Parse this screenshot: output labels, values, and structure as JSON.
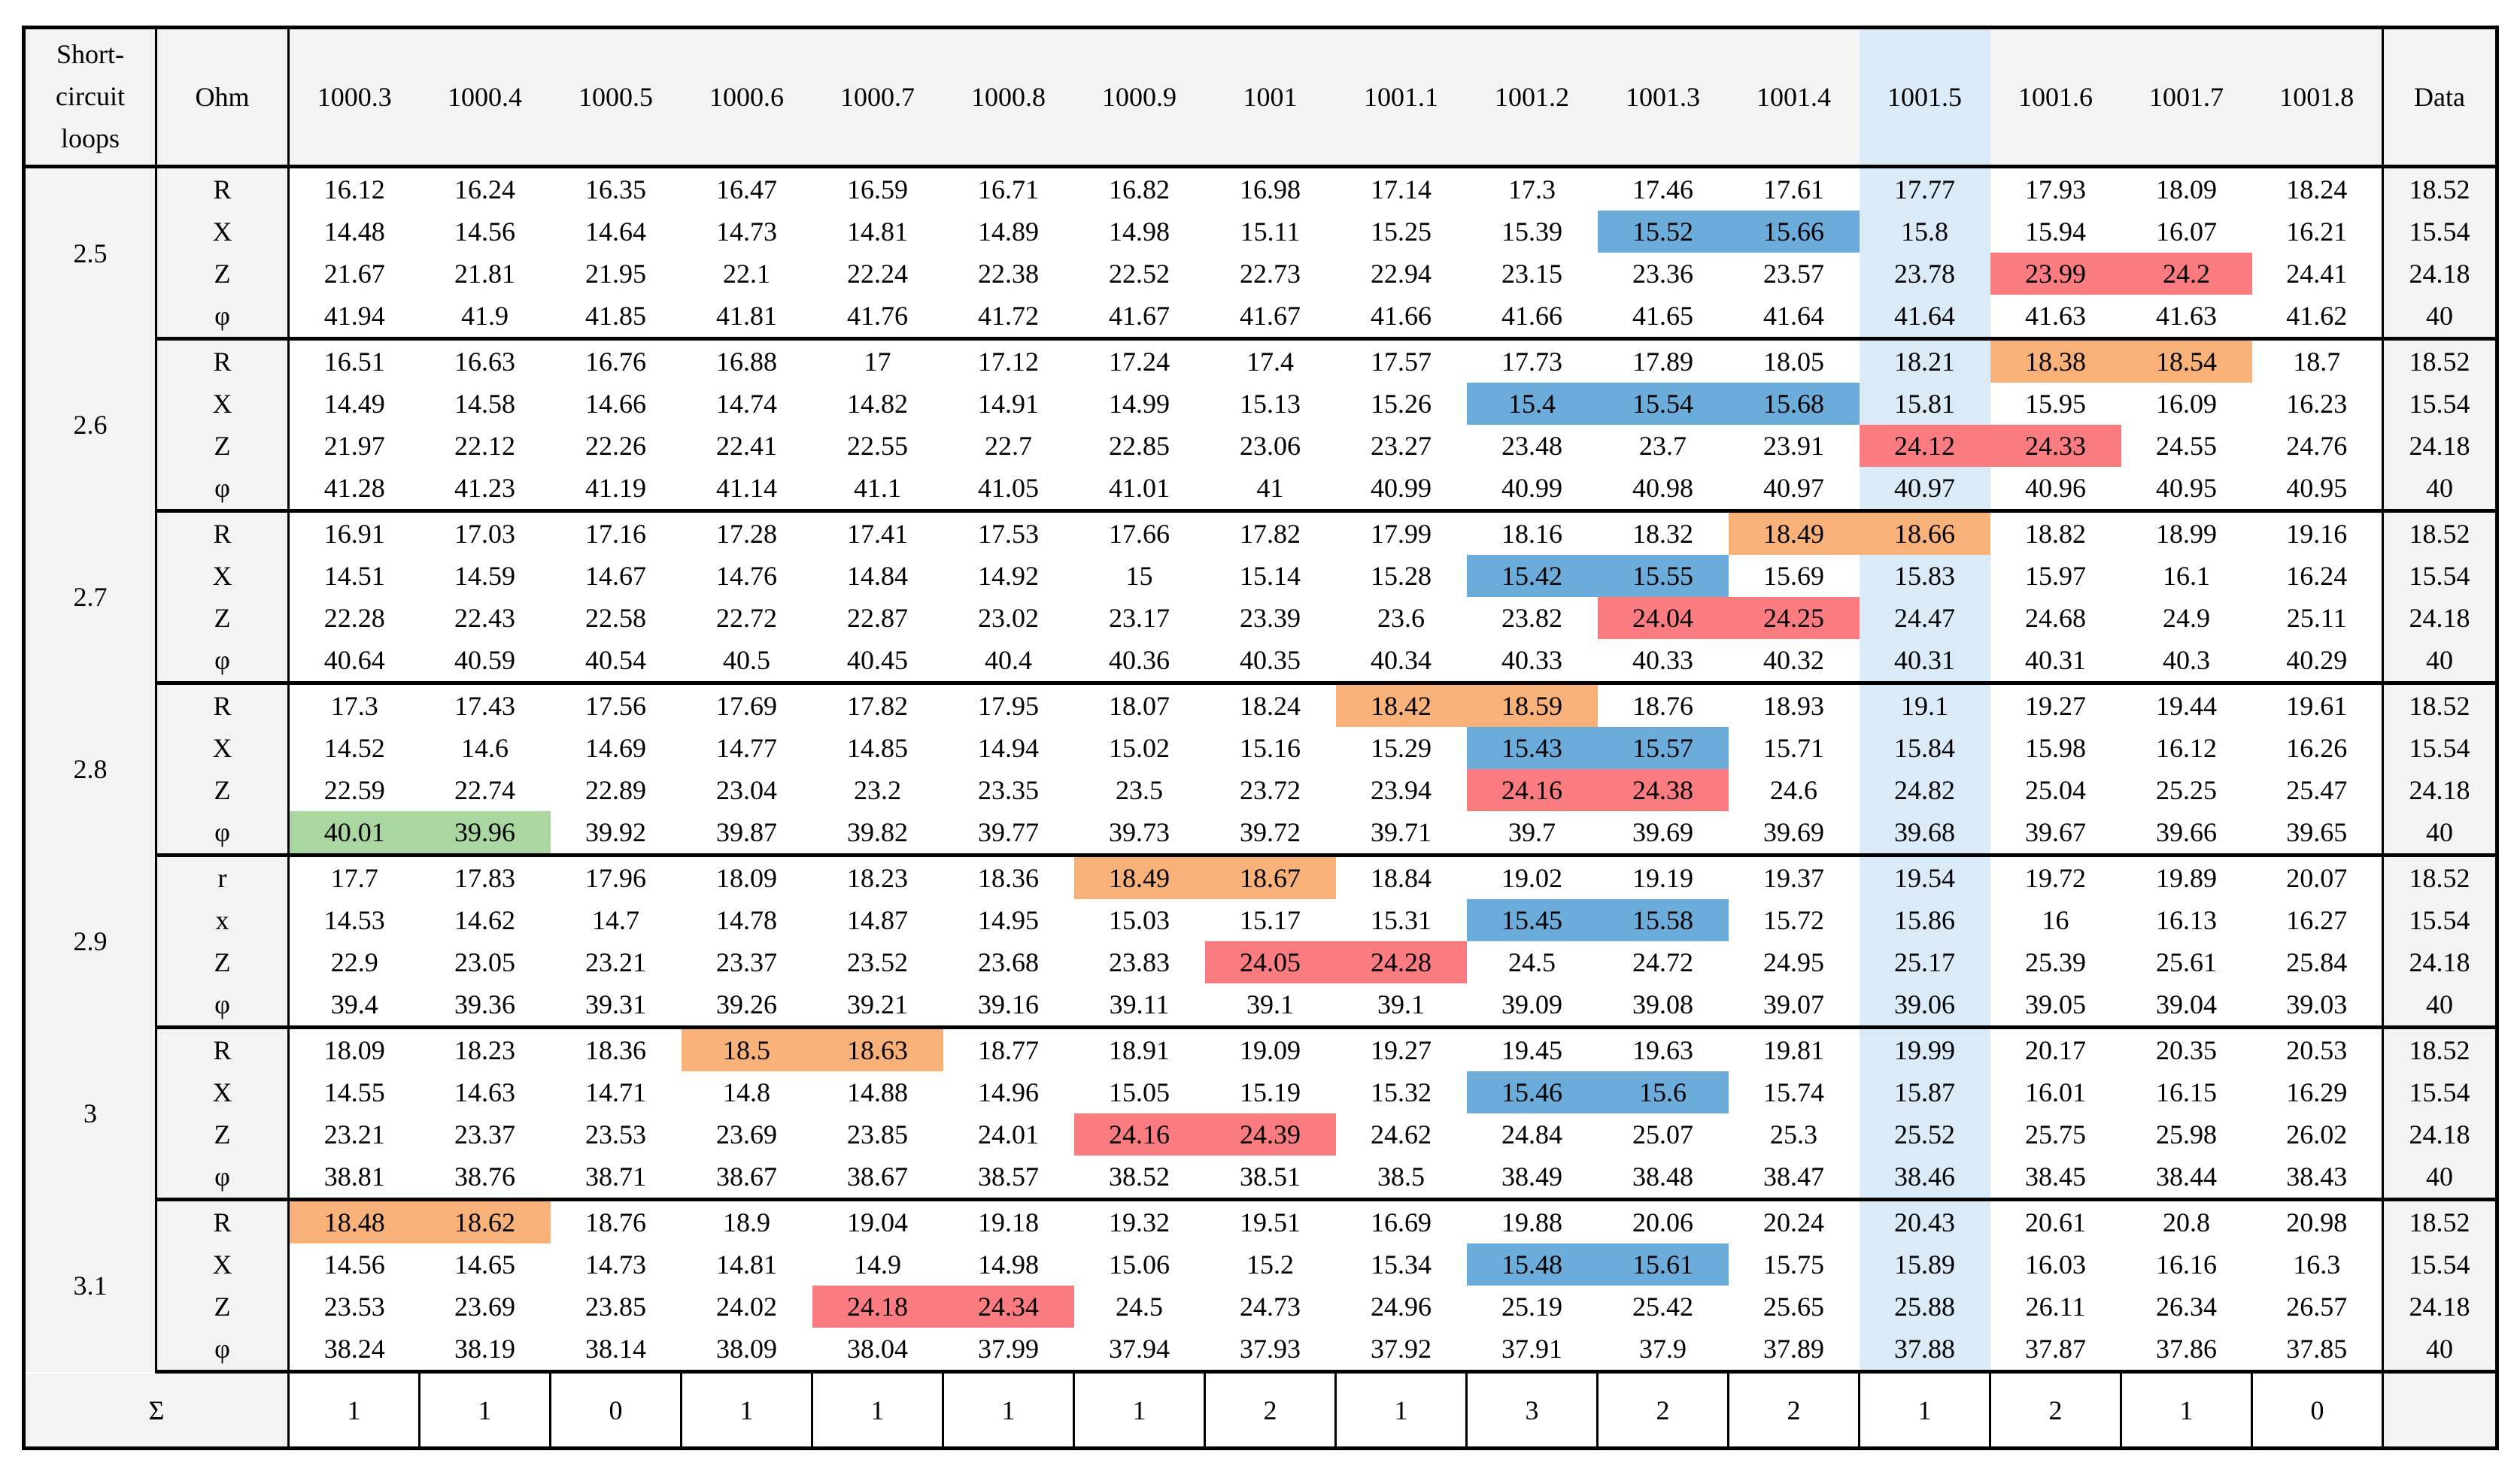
{
  "colors": {
    "header_bg": "#f3f3f1",
    "column_band": "#daeaf6",
    "highlight_blue": "#6cacda",
    "highlight_red": "#fa7b80",
    "highlight_orange": "#f8b178",
    "highlight_green": "#aad7a0",
    "border": "#000000",
    "body_bg": "#ffffff"
  },
  "chart_data": {
    "type": "table",
    "corner_header_text": "Short-\ncircuit\nloops",
    "corner_header": "Short-circuit loops",
    "unit_header": "Ohm",
    "data_header": "Data",
    "highlight_column": "1001.5",
    "column_headers": [
      "1000.3",
      "1000.4",
      "1000.5",
      "1000.6",
      "1000.7",
      "1000.8",
      "1000.9",
      "1001",
      "1001.1",
      "1001.2",
      "1001.3",
      "1001.4",
      "1001.5",
      "1001.6",
      "1001.7",
      "1001.8"
    ],
    "groups": [
      {
        "loop": "2.5",
        "rows": [
          {
            "label": "R",
            "values": [
              "16.12",
              "16.24",
              "16.35",
              "16.47",
              "16.59",
              "16.71",
              "16.82",
              "16.98",
              "17.14",
              "17.3",
              "17.46",
              "17.61",
              "17.77",
              "17.93",
              "18.09",
              "18.24"
            ],
            "data": "18.52",
            "highlights": {}
          },
          {
            "label": "X",
            "values": [
              "14.48",
              "14.56",
              "14.64",
              "14.73",
              "14.81",
              "14.89",
              "14.98",
              "15.11",
              "15.25",
              "15.39",
              "15.52",
              "15.66",
              "15.8",
              "15.94",
              "16.07",
              "16.21"
            ],
            "data": "15.54",
            "highlights": {
              "10": "blue",
              "11": "blue"
            }
          },
          {
            "label": "Z",
            "values": [
              "21.67",
              "21.81",
              "21.95",
              "22.1",
              "22.24",
              "22.38",
              "22.52",
              "22.73",
              "22.94",
              "23.15",
              "23.36",
              "23.57",
              "23.78",
              "23.99",
              "24.2",
              "24.41"
            ],
            "data": "24.18",
            "highlights": {
              "13": "red",
              "14": "red"
            }
          },
          {
            "label": "φ",
            "values": [
              "41.94",
              "41.9",
              "41.85",
              "41.81",
              "41.76",
              "41.72",
              "41.67",
              "41.67",
              "41.66",
              "41.66",
              "41.65",
              "41.64",
              "41.64",
              "41.63",
              "41.63",
              "41.62"
            ],
            "data": "40",
            "highlights": {}
          }
        ]
      },
      {
        "loop": "2.6",
        "rows": [
          {
            "label": "R",
            "values": [
              "16.51",
              "16.63",
              "16.76",
              "16.88",
              "17",
              "17.12",
              "17.24",
              "17.4",
              "17.57",
              "17.73",
              "17.89",
              "18.05",
              "18.21",
              "18.38",
              "18.54",
              "18.7"
            ],
            "data": "18.52",
            "highlights": {
              "13": "orange",
              "14": "orange"
            }
          },
          {
            "label": "X",
            "values": [
              "14.49",
              "14.58",
              "14.66",
              "14.74",
              "14.82",
              "14.91",
              "14.99",
              "15.13",
              "15.26",
              "15.4",
              "15.54",
              "15.68",
              "15.81",
              "15.95",
              "16.09",
              "16.23"
            ],
            "data": "15.54",
            "highlights": {
              "9": "blue",
              "10": "blue",
              "11": "blue"
            }
          },
          {
            "label": "Z",
            "values": [
              "21.97",
              "22.12",
              "22.26",
              "22.41",
              "22.55",
              "22.7",
              "22.85",
              "23.06",
              "23.27",
              "23.48",
              "23.7",
              "23.91",
              "24.12",
              "24.33",
              "24.55",
              "24.76"
            ],
            "data": "24.18",
            "highlights": {
              "12": "red",
              "13": "red"
            }
          },
          {
            "label": "φ",
            "values": [
              "41.28",
              "41.23",
              "41.19",
              "41.14",
              "41.1",
              "41.05",
              "41.01",
              "41",
              "40.99",
              "40.99",
              "40.98",
              "40.97",
              "40.97",
              "40.96",
              "40.95",
              "40.95"
            ],
            "data": "40",
            "highlights": {}
          }
        ]
      },
      {
        "loop": "2.7",
        "rows": [
          {
            "label": "R",
            "values": [
              "16.91",
              "17.03",
              "17.16",
              "17.28",
              "17.41",
              "17.53",
              "17.66",
              "17.82",
              "17.99",
              "18.16",
              "18.32",
              "18.49",
              "18.66",
              "18.82",
              "18.99",
              "19.16"
            ],
            "data": "18.52",
            "highlights": {
              "11": "orange",
              "12": "orange"
            }
          },
          {
            "label": "X",
            "values": [
              "14.51",
              "14.59",
              "14.67",
              "14.76",
              "14.84",
              "14.92",
              "15",
              "15.14",
              "15.28",
              "15.42",
              "15.55",
              "15.69",
              "15.83",
              "15.97",
              "16.1",
              "16.24"
            ],
            "data": "15.54",
            "highlights": {
              "9": "blue",
              "10": "blue"
            }
          },
          {
            "label": "Z",
            "values": [
              "22.28",
              "22.43",
              "22.58",
              "22.72",
              "22.87",
              "23.02",
              "23.17",
              "23.39",
              "23.6",
              "23.82",
              "24.04",
              "24.25",
              "24.47",
              "24.68",
              "24.9",
              "25.11"
            ],
            "data": "24.18",
            "highlights": {
              "10": "red",
              "11": "red"
            }
          },
          {
            "label": "φ",
            "values": [
              "40.64",
              "40.59",
              "40.54",
              "40.5",
              "40.45",
              "40.4",
              "40.36",
              "40.35",
              "40.34",
              "40.33",
              "40.33",
              "40.32",
              "40.31",
              "40.31",
              "40.3",
              "40.29"
            ],
            "data": "40",
            "highlights": {}
          }
        ]
      },
      {
        "loop": "2.8",
        "rows": [
          {
            "label": "R",
            "values": [
              "17.3",
              "17.43",
              "17.56",
              "17.69",
              "17.82",
              "17.95",
              "18.07",
              "18.24",
              "18.42",
              "18.59",
              "18.76",
              "18.93",
              "19.1",
              "19.27",
              "19.44",
              "19.61"
            ],
            "data": "18.52",
            "highlights": {
              "8": "orange",
              "9": "orange"
            }
          },
          {
            "label": "X",
            "values": [
              "14.52",
              "14.6",
              "14.69",
              "14.77",
              "14.85",
              "14.94",
              "15.02",
              "15.16",
              "15.29",
              "15.43",
              "15.57",
              "15.71",
              "15.84",
              "15.98",
              "16.12",
              "16.26"
            ],
            "data": "15.54",
            "highlights": {
              "9": "blue",
              "10": "blue"
            }
          },
          {
            "label": "Z",
            "values": [
              "22.59",
              "22.74",
              "22.89",
              "23.04",
              "23.2",
              "23.35",
              "23.5",
              "23.72",
              "23.94",
              "24.16",
              "24.38",
              "24.6",
              "24.82",
              "25.04",
              "25.25",
              "25.47"
            ],
            "data": "24.18",
            "highlights": {
              "9": "red",
              "10": "red"
            }
          },
          {
            "label": "φ",
            "values": [
              "40.01",
              "39.96",
              "39.92",
              "39.87",
              "39.82",
              "39.77",
              "39.73",
              "39.72",
              "39.71",
              "39.7",
              "39.69",
              "39.69",
              "39.68",
              "39.67",
              "39.66",
              "39.65"
            ],
            "data": "40",
            "highlights": {
              "0": "green",
              "1": "green"
            }
          }
        ]
      },
      {
        "loop": "2.9",
        "rows": [
          {
            "label": "r",
            "values": [
              "17.7",
              "17.83",
              "17.96",
              "18.09",
              "18.23",
              "18.36",
              "18.49",
              "18.67",
              "18.84",
              "19.02",
              "19.19",
              "19.37",
              "19.54",
              "19.72",
              "19.89",
              "20.07"
            ],
            "data": "18.52",
            "highlights": {
              "6": "orange",
              "7": "orange"
            }
          },
          {
            "label": "x",
            "values": [
              "14.53",
              "14.62",
              "14.7",
              "14.78",
              "14.87",
              "14.95",
              "15.03",
              "15.17",
              "15.31",
              "15.45",
              "15.58",
              "15.72",
              "15.86",
              "16",
              "16.13",
              "16.27"
            ],
            "data": "15.54",
            "highlights": {
              "9": "blue",
              "10": "blue"
            }
          },
          {
            "label": "Z",
            "values": [
              "22.9",
              "23.05",
              "23.21",
              "23.37",
              "23.52",
              "23.68",
              "23.83",
              "24.05",
              "24.28",
              "24.5",
              "24.72",
              "24.95",
              "25.17",
              "25.39",
              "25.61",
              "25.84"
            ],
            "data": "24.18",
            "highlights": {
              "7": "red",
              "8": "red"
            }
          },
          {
            "label": "φ",
            "values": [
              "39.4",
              "39.36",
              "39.31",
              "39.26",
              "39.21",
              "39.16",
              "39.11",
              "39.1",
              "39.1",
              "39.09",
              "39.08",
              "39.07",
              "39.06",
              "39.05",
              "39.04",
              "39.03"
            ],
            "data": "40",
            "highlights": {}
          }
        ]
      },
      {
        "loop": "3",
        "rows": [
          {
            "label": "R",
            "values": [
              "18.09",
              "18.23",
              "18.36",
              "18.5",
              "18.63",
              "18.77",
              "18.91",
              "19.09",
              "19.27",
              "19.45",
              "19.63",
              "19.81",
              "19.99",
              "20.17",
              "20.35",
              "20.53"
            ],
            "data": "18.52",
            "highlights": {
              "3": "orange",
              "4": "orange"
            }
          },
          {
            "label": "X",
            "values": [
              "14.55",
              "14.63",
              "14.71",
              "14.8",
              "14.88",
              "14.96",
              "15.05",
              "15.19",
              "15.32",
              "15.46",
              "15.6",
              "15.74",
              "15.87",
              "16.01",
              "16.15",
              "16.29"
            ],
            "data": "15.54",
            "highlights": {
              "9": "blue",
              "10": "blue"
            }
          },
          {
            "label": "Z",
            "values": [
              "23.21",
              "23.37",
              "23.53",
              "23.69",
              "23.85",
              "24.01",
              "24.16",
              "24.39",
              "24.62",
              "24.84",
              "25.07",
              "25.3",
              "25.52",
              "25.75",
              "25.98",
              "26.02"
            ],
            "data": "24.18",
            "highlights": {
              "6": "red",
              "7": "red"
            }
          },
          {
            "label": "φ",
            "values": [
              "38.81",
              "38.76",
              "38.71",
              "38.67",
              "38.67",
              "38.57",
              "38.52",
              "38.51",
              "38.5",
              "38.49",
              "38.48",
              "38.47",
              "38.46",
              "38.45",
              "38.44",
              "38.43"
            ],
            "data": "40",
            "highlights": {}
          }
        ]
      },
      {
        "loop": "3.1",
        "rows": [
          {
            "label": "R",
            "values": [
              "18.48",
              "18.62",
              "18.76",
              "18.9",
              "19.04",
              "19.18",
              "19.32",
              "19.51",
              "16.69",
              "19.88",
              "20.06",
              "20.24",
              "20.43",
              "20.61",
              "20.8",
              "20.98"
            ],
            "data": "18.52",
            "highlights": {
              "0": "orange",
              "1": "orange"
            }
          },
          {
            "label": "X",
            "values": [
              "14.56",
              "14.65",
              "14.73",
              "14.81",
              "14.9",
              "14.98",
              "15.06",
              "15.2",
              "15.34",
              "15.48",
              "15.61",
              "15.75",
              "15.89",
              "16.03",
              "16.16",
              "16.3"
            ],
            "data": "15.54",
            "highlights": {
              "9": "blue",
              "10": "blue"
            }
          },
          {
            "label": "Z",
            "values": [
              "23.53",
              "23.69",
              "23.85",
              "24.02",
              "24.18",
              "24.34",
              "24.5",
              "24.73",
              "24.96",
              "25.19",
              "25.42",
              "25.65",
              "25.88",
              "26.11",
              "26.34",
              "26.57"
            ],
            "data": "24.18",
            "highlights": {
              "4": "red",
              "5": "red"
            }
          },
          {
            "label": "φ",
            "values": [
              "38.24",
              "38.19",
              "38.14",
              "38.09",
              "38.04",
              "37.99",
              "37.94",
              "37.93",
              "37.92",
              "37.91",
              "37.9",
              "37.89",
              "37.88",
              "37.87",
              "37.86",
              "37.85"
            ],
            "data": "40",
            "highlights": {}
          }
        ]
      }
    ],
    "sum_row": {
      "label": "Σ",
      "values": [
        "1",
        "1",
        "0",
        "1",
        "1",
        "1",
        "1",
        "2",
        "1",
        "3",
        "2",
        "2",
        "1",
        "2",
        "1",
        "0"
      ],
      "data": ""
    }
  }
}
